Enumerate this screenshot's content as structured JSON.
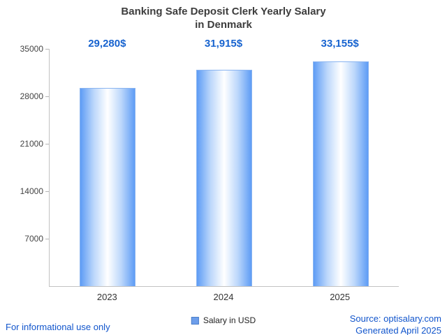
{
  "title": {
    "line1": "Banking Safe Deposit Clerk Yearly Salary",
    "line2": "in Denmark"
  },
  "chart_data": {
    "type": "bar",
    "title": "Banking Safe Deposit Clerk Yearly Salary in Denmark",
    "categories": [
      "2023",
      "2024",
      "2025"
    ],
    "values": [
      29280,
      31915,
      33155
    ],
    "value_labels": [
      "29,280$",
      "31,915$",
      "33,155$"
    ],
    "xlabel": "",
    "ylabel": "",
    "ylim": [
      0,
      35000
    ],
    "yticks": [
      7000,
      14000,
      21000,
      28000,
      35000
    ],
    "grid": false,
    "legend_position": "bottom",
    "legend": [
      {
        "label": "Salary in USD",
        "color": "#6d9eeb"
      }
    ],
    "bar_gradient": [
      "#5e9cf5",
      "#bcd7fb",
      "#ffffff",
      "#bcd7fb",
      "#5e9cf5"
    ]
  },
  "footer": {
    "left": "For informational use only",
    "source": "Source: optisalary.com",
    "generated": "Generated April 2025"
  },
  "colors": {
    "value_label": "#1763cf",
    "link": "#1155cc",
    "axis": "#c2c2c2",
    "text": "#333333"
  }
}
